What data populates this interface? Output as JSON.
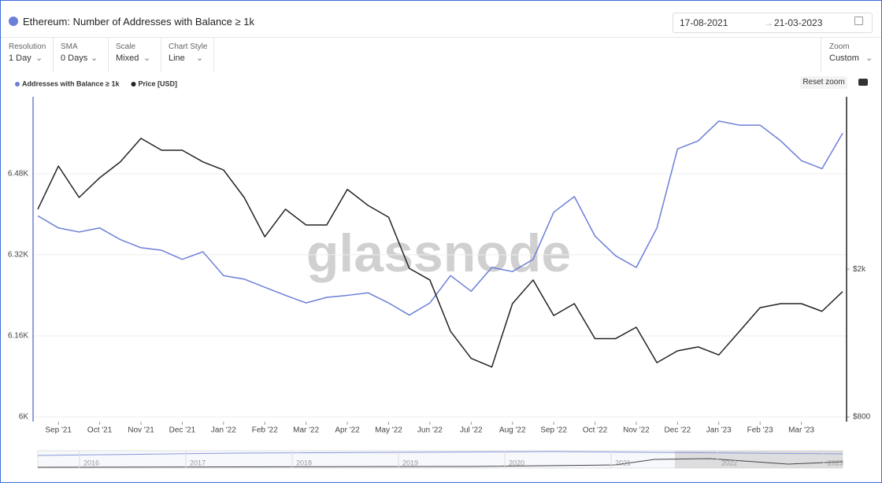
{
  "header": {
    "title": "Ethereum: Number of Addresses with Balance ≥ 1k",
    "date_from": "17-08-2021",
    "date_to": "21-03-2023"
  },
  "controls": [
    {
      "label": "Resolution",
      "value": "1 Day"
    },
    {
      "label": "SMA",
      "value": "0 Days"
    },
    {
      "label": "Scale",
      "value": "Mixed"
    },
    {
      "label": "Chart Style",
      "value": "Line"
    }
  ],
  "zoom": {
    "label": "Zoom",
    "value": "Custom"
  },
  "reset_zoom": "Reset zoom",
  "watermark": "glassnode",
  "navigator_years": [
    "2016",
    "2017",
    "2018",
    "2019",
    "2020",
    "2021",
    "2022",
    "2023"
  ],
  "chart_data": {
    "type": "line",
    "legend": "top-left",
    "grid": true,
    "categories": [
      null,
      "Sep '21",
      null,
      "Oct '21",
      null,
      "Nov '21",
      null,
      "Dec '21",
      null,
      "Jan '22",
      null,
      "Feb '22",
      null,
      "Mar '22",
      null,
      "Apr '22",
      null,
      "May '22",
      null,
      "Jun '22",
      null,
      "Jul '22",
      null,
      "Aug '22",
      null,
      "Sep '22",
      null,
      "Oct '22",
      null,
      "Nov '22",
      null,
      "Dec '22",
      null,
      "Jan '23",
      null,
      "Feb '23",
      null,
      "Mar '23",
      null,
      null
    ],
    "ylim": [
      6000,
      6632
    ],
    "yticks": [
      {
        "value": 6000,
        "label": "6K"
      },
      {
        "value": 6160,
        "label": "6.16K"
      },
      {
        "value": 6320,
        "label": "6.32K"
      },
      {
        "value": 6480,
        "label": "6.48K"
      }
    ],
    "y2lim": [
      800,
      5825
    ],
    "y2scale": "log",
    "y2ticks": [
      {
        "value": 800,
        "label": "$800"
      },
      {
        "value": 2000,
        "label": "$2k"
      }
    ],
    "series": [
      {
        "name": "Addresses with Balance ≥ 1k",
        "color": "#6b7fd7",
        "values": [
          6397,
          6373,
          6365,
          6373,
          6350,
          6334,
          6329,
          6311,
          6326,
          6279,
          6272,
          6256,
          6240,
          6225,
          6236,
          6240,
          6245,
          6225,
          6201,
          6225,
          6279,
          6248,
          6295,
          6287,
          6311,
          6404,
          6435,
          6357,
          6318,
          6295,
          6373,
          6529,
          6545,
          6584,
          6576,
          6576,
          6545,
          6506,
          6490,
          6560
        ]
      },
      {
        "name": "Price [USD]",
        "color": "#222222",
        "axis": "y2",
        "values": [
          2900,
          3790,
          3120,
          3525,
          3890,
          4500,
          4180,
          4180,
          3890,
          3700,
          3120,
          2445,
          2900,
          2630,
          2630,
          3280,
          2970,
          2760,
          2010,
          1870,
          1360,
          1150,
          1090,
          1615,
          1870,
          1500,
          1615,
          1300,
          1300,
          1395,
          1120,
          1205,
          1235,
          1175,
          1360,
          1575,
          1615,
          1615,
          1540,
          1740
        ]
      }
    ]
  }
}
